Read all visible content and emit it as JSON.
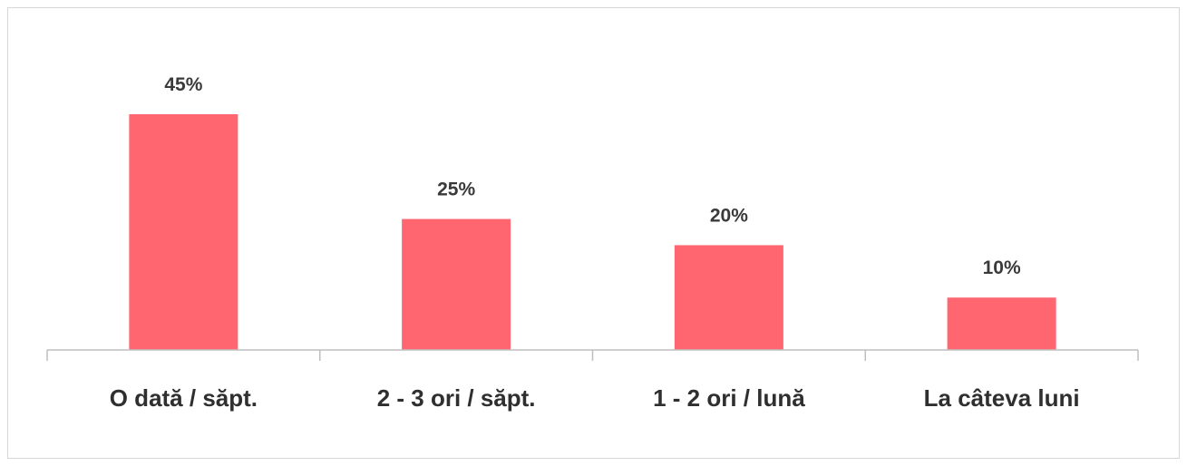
{
  "chart_data": {
    "type": "bar",
    "categories": [
      "O dată / săpt.",
      "2 - 3 ori / săpt.",
      "1 - 2 ori / lună",
      "La câteva luni"
    ],
    "values": [
      45,
      25,
      20,
      10
    ],
    "value_labels": [
      "45%",
      "25%",
      "20%",
      "10%"
    ],
    "title": "",
    "xlabel": "",
    "ylabel": "",
    "ylim": [
      0,
      50
    ],
    "grid": false,
    "legend": "none",
    "bar_color": "#ff6670",
    "axis_color": "#bfbfbf"
  }
}
